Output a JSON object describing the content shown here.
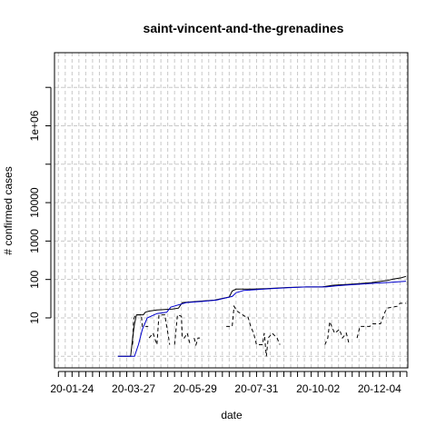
{
  "chart_data": {
    "type": "line",
    "title": "saint-vincent-and-the-grenadines",
    "xlabel": "date",
    "ylabel": "# confirmed cases",
    "y_scale": "log",
    "grid": true,
    "x_range": [
      "2020-01-06",
      "2021-01-02"
    ],
    "x_tick_labels": [
      "20-01-24",
      "20-03-27",
      "20-05-29",
      "20-07-31",
      "20-10-02",
      "20-12-04"
    ],
    "x_tick_dates": [
      "2020-01-24",
      "2020-03-27",
      "2020-05-29",
      "2020-07-31",
      "2020-10-02",
      "2020-12-04"
    ],
    "y_tick_labels": [
      "10",
      "100",
      "1000",
      "10000",
      "1e+06"
    ],
    "y_tick_values": [
      10,
      100,
      1000,
      10000,
      1000000
    ],
    "y_range": [
      0.5,
      80000000
    ],
    "series": [
      {
        "style": "solid",
        "color": "#000000",
        "points": [
          [
            "2020-03-11",
            1
          ],
          [
            "2020-03-24",
            1
          ],
          [
            "2020-03-26",
            3
          ],
          [
            "2020-03-28",
            7
          ],
          [
            "2020-03-30",
            12
          ],
          [
            "2020-04-06",
            12
          ],
          [
            "2020-04-08",
            14
          ],
          [
            "2020-04-12",
            15
          ],
          [
            "2020-04-20",
            16
          ],
          [
            "2020-05-06",
            17
          ],
          [
            "2020-05-12",
            18
          ],
          [
            "2020-05-16",
            25
          ],
          [
            "2020-06-01",
            27
          ],
          [
            "2020-06-18",
            29
          ],
          [
            "2020-07-03",
            35
          ],
          [
            "2020-07-06",
            50
          ],
          [
            "2020-07-10",
            56
          ],
          [
            "2020-07-28",
            56
          ],
          [
            "2020-08-10",
            58
          ],
          [
            "2020-09-01",
            62
          ],
          [
            "2020-09-20",
            64
          ],
          [
            "2020-10-06",
            64
          ],
          [
            "2020-10-18",
            71
          ],
          [
            "2020-11-03",
            75
          ],
          [
            "2020-11-13",
            78
          ],
          [
            "2020-11-26",
            83
          ],
          [
            "2020-12-03",
            88
          ],
          [
            "2020-12-12",
            94
          ],
          [
            "2020-12-18",
            102
          ],
          [
            "2020-12-26",
            110
          ],
          [
            "2020-12-31",
            120
          ]
        ]
      },
      {
        "style": "solid",
        "color": "#0000cc",
        "points": [
          [
            "2020-03-11",
            1
          ],
          [
            "2020-03-28",
            1
          ],
          [
            "2020-04-01",
            2
          ],
          [
            "2020-04-05",
            5
          ],
          [
            "2020-04-10",
            10
          ],
          [
            "2020-04-20",
            13
          ],
          [
            "2020-04-30",
            14
          ],
          [
            "2020-05-04",
            19
          ],
          [
            "2020-05-20",
            25
          ],
          [
            "2020-06-06",
            27
          ],
          [
            "2020-06-20",
            29
          ],
          [
            "2020-07-06",
            36
          ],
          [
            "2020-07-10",
            45
          ],
          [
            "2020-07-18",
            52
          ],
          [
            "2020-08-01",
            55
          ],
          [
            "2020-08-15",
            58
          ],
          [
            "2020-09-01",
            61
          ],
          [
            "2020-09-20",
            64
          ],
          [
            "2020-10-10",
            64
          ],
          [
            "2020-10-20",
            68
          ],
          [
            "2020-11-01",
            72
          ],
          [
            "2020-11-15",
            76
          ],
          [
            "2020-11-30",
            80
          ],
          [
            "2020-12-15",
            84
          ],
          [
            "2020-12-31",
            90
          ]
        ]
      },
      {
        "style": "dashed",
        "color": "#000000",
        "segments": [
          [
            [
              "2020-03-26",
              2
            ],
            [
              "2020-03-27",
              9
            ],
            [
              "2020-03-29",
              12
            ],
            [
              "2020-04-04",
              12
            ],
            [
              "2020-04-05",
              6
            ],
            [
              "2020-04-11",
              6
            ]
          ],
          [
            [
              "2020-04-12",
              3
            ],
            [
              "2020-04-16",
              4
            ],
            [
              "2020-04-20",
              2
            ],
            [
              "2020-04-22",
              12
            ],
            [
              "2020-04-28",
              12
            ],
            [
              "2020-05-02",
              3
            ],
            [
              "2020-05-03",
              2
            ]
          ],
          [
            [
              "2020-05-08",
              2
            ],
            [
              "2020-05-11",
              12
            ],
            [
              "2020-05-15",
              11
            ],
            [
              "2020-05-16",
              3
            ],
            [
              "2020-05-18",
              3
            ],
            [
              "2020-05-21",
              4
            ],
            [
              "2020-05-24",
              2
            ]
          ],
          [
            [
              "2020-05-28",
              3
            ],
            [
              "2020-05-30",
              2
            ],
            [
              "2020-06-01",
              3
            ],
            [
              "2020-06-03",
              3
            ]
          ],
          [
            [
              "2020-06-30",
              6
            ],
            [
              "2020-07-06",
              6
            ],
            [
              "2020-07-08",
              20
            ],
            [
              "2020-07-11",
              15
            ],
            [
              "2020-07-19",
              11
            ],
            [
              "2020-07-22",
              11
            ],
            [
              "2020-07-25",
              6
            ],
            [
              "2020-07-28",
              4
            ],
            [
              "2020-07-31",
              2
            ],
            [
              "2020-08-06",
              2
            ],
            [
              "2020-08-08",
              4
            ],
            [
              "2020-08-10",
              1
            ],
            [
              "2020-08-12",
              3
            ],
            [
              "2020-08-16",
              4
            ],
            [
              "2020-08-21",
              3
            ],
            [
              "2020-08-24",
              2
            ]
          ],
          [
            [
              "2020-10-09",
              2
            ],
            [
              "2020-10-12",
              3
            ],
            [
              "2020-10-14",
              8
            ],
            [
              "2020-10-19",
              4
            ],
            [
              "2020-10-24",
              5
            ],
            [
              "2020-10-27",
              3
            ],
            [
              "2020-10-31",
              4
            ],
            [
              "2020-11-03",
              2
            ]
          ],
          [
            [
              "2020-11-11",
              3
            ],
            [
              "2020-11-14",
              6
            ],
            [
              "2020-11-24",
              6
            ],
            [
              "2020-11-27",
              7
            ],
            [
              "2020-12-05",
              7
            ],
            [
              "2020-12-10",
              15
            ],
            [
              "2020-12-12",
              18
            ],
            [
              "2020-12-22",
              20
            ],
            [
              "2020-12-25",
              24
            ],
            [
              "2020-12-31",
              24
            ]
          ]
        ]
      }
    ]
  }
}
